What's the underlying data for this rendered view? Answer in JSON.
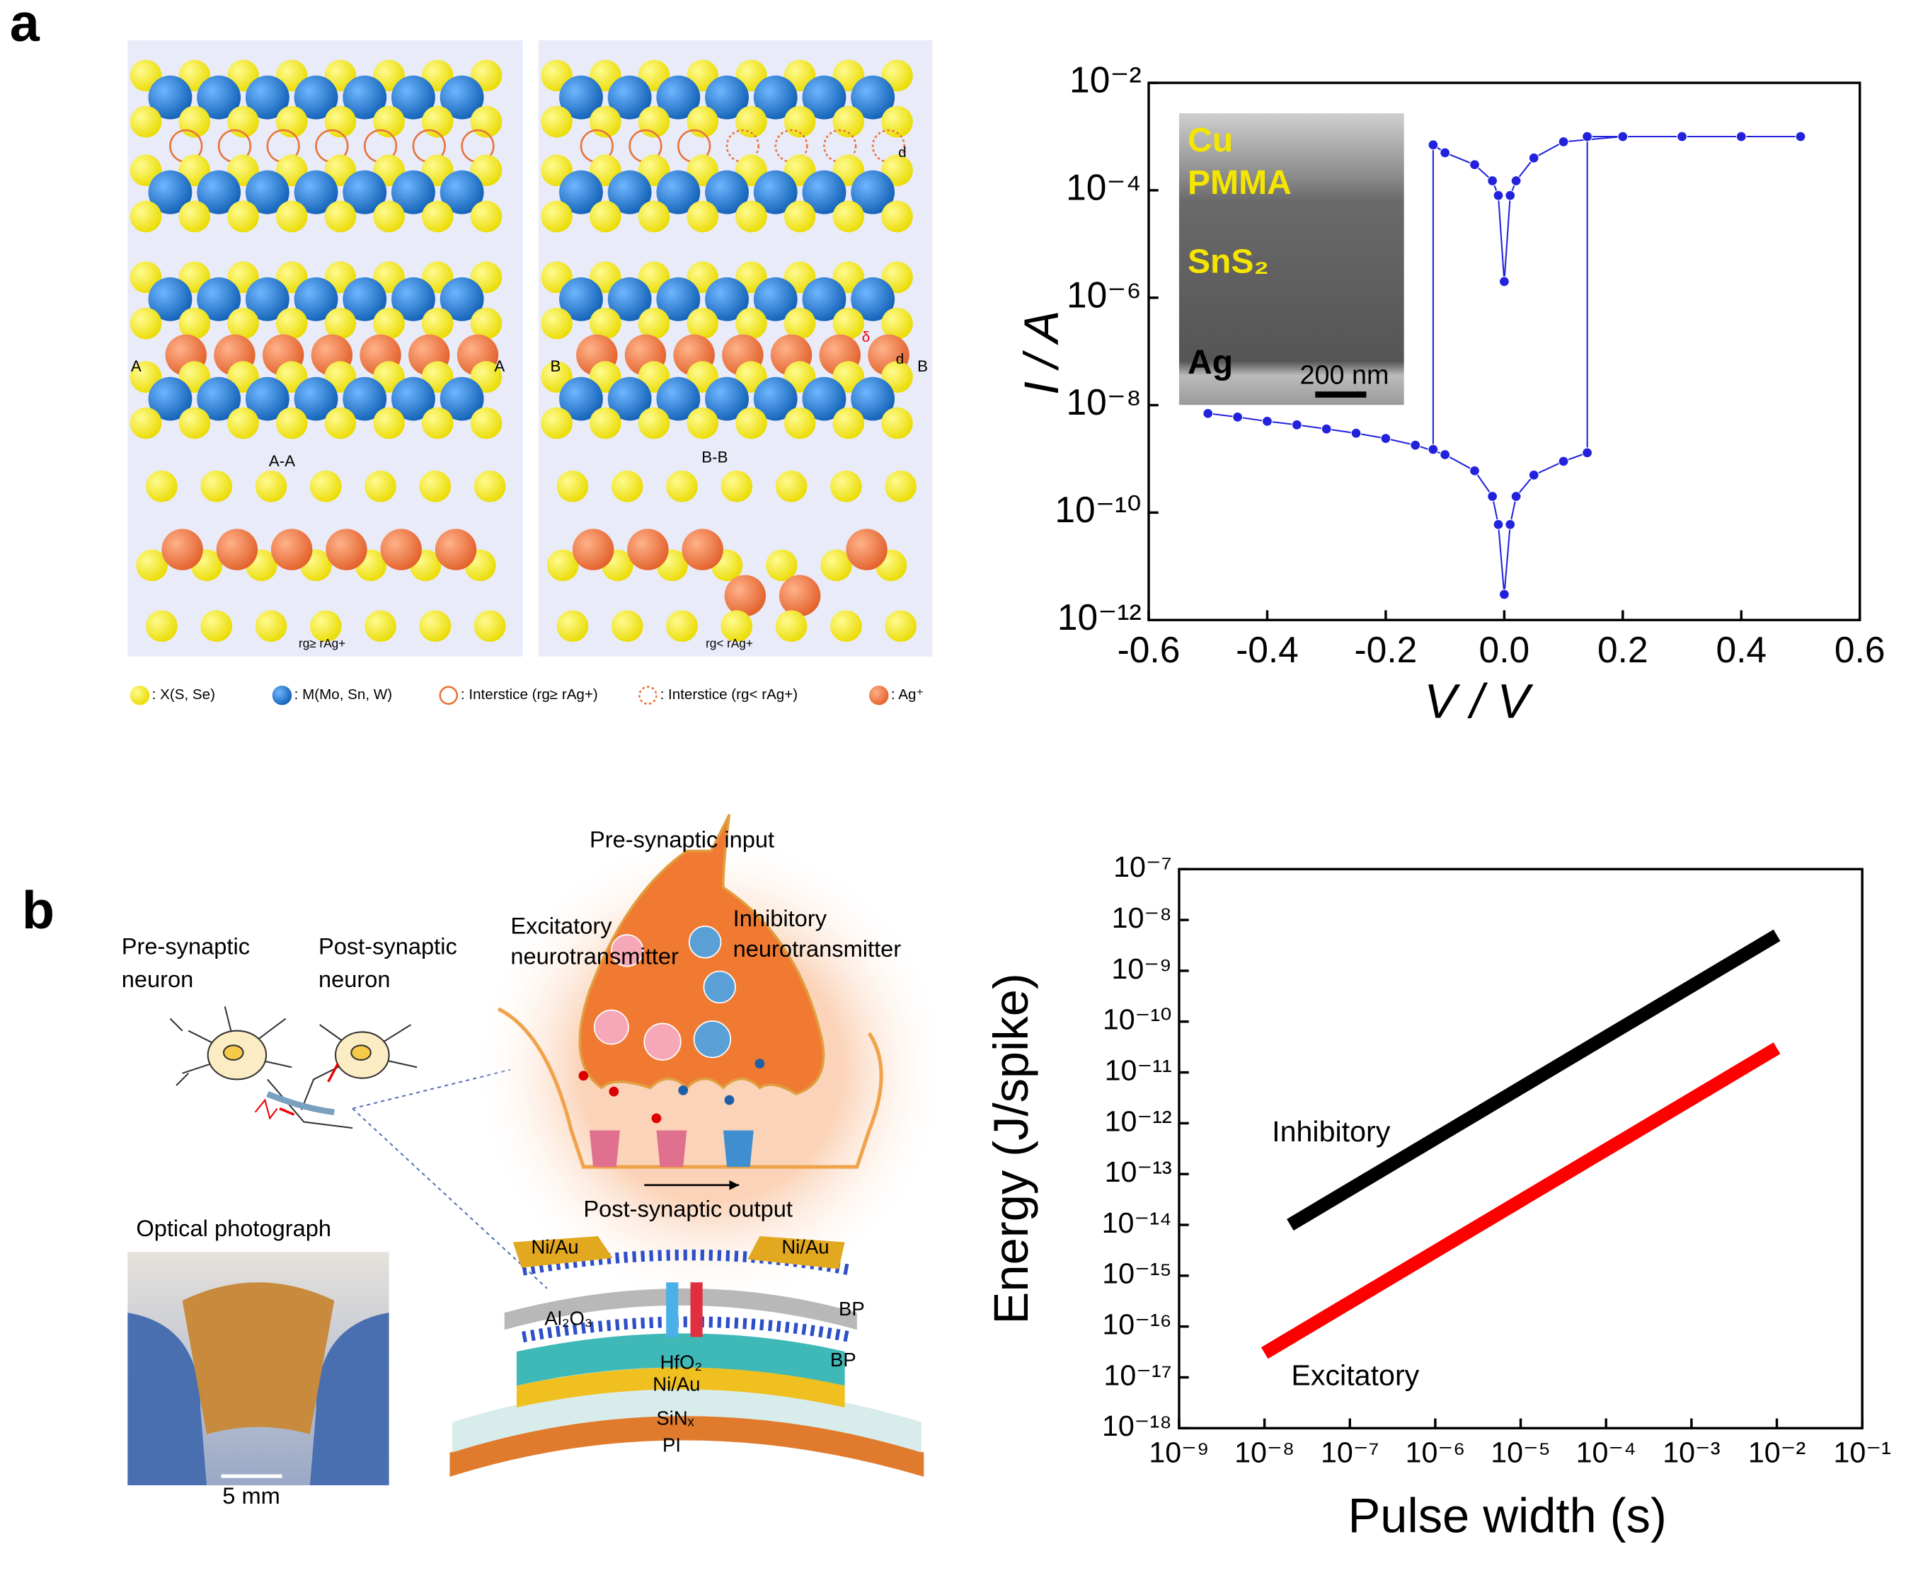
{
  "panel_labels": [
    "a",
    "b"
  ],
  "panel_a": {
    "section_labels": [
      "A-A",
      "B-B"
    ],
    "cut_labels": [
      "A",
      "A",
      "B",
      "B"
    ],
    "d_labels": [
      "d",
      "d"
    ],
    "delta_label": "δ",
    "conditions": [
      "rg≥ rAg+",
      "rg< rAg+"
    ],
    "legend": [
      ": X(S, Se)",
      ": M(Mo, Sn, W)",
      ": Interstice (rg≥ rAg+)",
      ": Interstice (rg< rAg+)",
      ": Ag⁺"
    ]
  },
  "inset": {
    "labels": [
      "Cu",
      "PMMA",
      "SnS₂",
      "Ag"
    ],
    "scale_bar": "200 nm"
  },
  "panel_b": {
    "pre_synaptic_neuron": [
      "Pre-synaptic",
      "neuron"
    ],
    "post_synaptic_neuron": [
      "Post-synaptic",
      "neuron"
    ],
    "pre_synaptic_input": "Pre-synaptic input",
    "excitatory_neurotransmitter": [
      "Excitatory",
      "neurotransmitter"
    ],
    "inhibitory_neurotransmitter": [
      "Inhibitory",
      "neurotransmitter"
    ],
    "post_synaptic_output": "Post-synaptic output",
    "photo_title": "Optical photograph",
    "photo_scale": "5 mm",
    "layers": [
      "Ni/Au",
      "Ni/Au",
      "BP",
      "Al₂O₃",
      "HfO₂",
      "BP",
      "Ni/Au",
      "SiNₓ",
      "PI"
    ]
  },
  "chart_data": [
    {
      "type": "scatter",
      "xlabel": "V / V",
      "ylabel": "I / A",
      "yscale": "log",
      "xlim": [
        -0.6,
        0.6
      ],
      "ylim": [
        1e-12,
        0.01
      ],
      "xticks": [
        -0.6,
        -0.4,
        -0.2,
        {
          "value": 0,
          "label": "0.0"
        },
        0.2,
        0.4,
        0.6
      ],
      "yticks": [
        {
          "value": 1e-12,
          "label": "10⁻¹²"
        },
        {
          "value": 1e-10,
          "label": "10⁻¹⁰"
        },
        {
          "value": 1e-08,
          "label": "10⁻⁸"
        },
        {
          "value": 1e-06,
          "label": "10⁻⁶"
        },
        {
          "value": 0.0001,
          "label": "10⁻⁴"
        },
        {
          "value": 0.01,
          "label": "10⁻²"
        }
      ],
      "series": [
        {
          "color": "#2222dd",
          "x": [
            -0.5,
            -0.45,
            -0.4,
            -0.35,
            -0.3,
            -0.25,
            -0.2,
            -0.15,
            -0.1,
            -0.05,
            -0.02,
            -0.01,
            0,
            0.01,
            0.02,
            0.05,
            0.1,
            0.14,
            0.14,
            0.2,
            0.3,
            0.4,
            0.5,
            0.4,
            0.3,
            0.2,
            0.1,
            0.05,
            0.02,
            0.01,
            0,
            -0.01,
            -0.02,
            -0.05,
            -0.1,
            -0.12,
            -0.12
          ],
          "values": [
            7e-09,
            6e-09,
            5e-09,
            4.3e-09,
            3.6e-09,
            3e-09,
            2.4e-09,
            1.8e-09,
            1.2e-09,
            6e-10,
            2e-10,
            6e-11,
            3e-12,
            6e-11,
            2e-10,
            5e-10,
            9e-10,
            1.3e-09,
            0.001,
            0.001,
            0.001,
            0.001,
            0.001,
            0.001,
            0.001,
            0.001,
            0.0008,
            0.0004,
            0.00015,
            8e-05,
            2e-06,
            8e-05,
            0.00015,
            0.0003,
            0.0005,
            0.0007,
            1.5e-09
          ]
        }
      ]
    },
    {
      "type": "line",
      "xlabel": "Pulse width (s)",
      "ylabel": "Energy (J/spike)",
      "xscale": "log",
      "yscale": "log",
      "xlim": [
        1e-09,
        0.1
      ],
      "ylim": [
        1e-18,
        1e-07
      ],
      "xticks": [
        {
          "value": 1e-09,
          "label": "10⁻⁹"
        },
        {
          "value": 1e-08,
          "label": "10⁻⁸"
        },
        {
          "value": 1e-07,
          "label": "10⁻⁷"
        },
        {
          "value": 1e-06,
          "label": "10⁻⁶"
        },
        {
          "value": 1e-05,
          "label": "10⁻⁵"
        },
        {
          "value": 0.0001,
          "label": "10⁻⁴"
        },
        {
          "value": 0.001,
          "label": "10⁻³"
        },
        {
          "value": 0.01,
          "label": "10⁻²"
        },
        {
          "value": 0.1,
          "label": "10⁻¹"
        }
      ],
      "yticks": [
        {
          "value": 1e-18,
          "label": "10⁻¹⁸"
        },
        {
          "value": 1e-17,
          "label": "10⁻¹⁷"
        },
        {
          "value": 1e-16,
          "label": "10⁻¹⁶"
        },
        {
          "value": 1e-15,
          "label": "10⁻¹⁵"
        },
        {
          "value": 1e-14,
          "label": "10⁻¹⁴"
        },
        {
          "value": 1e-13,
          "label": "10⁻¹³"
        },
        {
          "value": 1e-12,
          "label": "10⁻¹²"
        },
        {
          "value": 1e-11,
          "label": "10⁻¹¹"
        },
        {
          "value": 1e-10,
          "label": "10⁻¹⁰"
        },
        {
          "value": 1e-09,
          "label": "10⁻⁹"
        },
        {
          "value": 1e-08,
          "label": "10⁻⁸"
        },
        {
          "value": 1e-07,
          "label": "10⁻⁷"
        }
      ],
      "series": [
        {
          "name": "Inhibitory",
          "color": "#000000",
          "x": [
            2e-08,
            0.01
          ],
          "values": [
            1e-14,
            5e-09
          ]
        },
        {
          "name": "Excitatory",
          "color": "#ff0000",
          "x": [
            1e-08,
            0.01
          ],
          "values": [
            3e-17,
            3e-11
          ]
        }
      ]
    }
  ]
}
